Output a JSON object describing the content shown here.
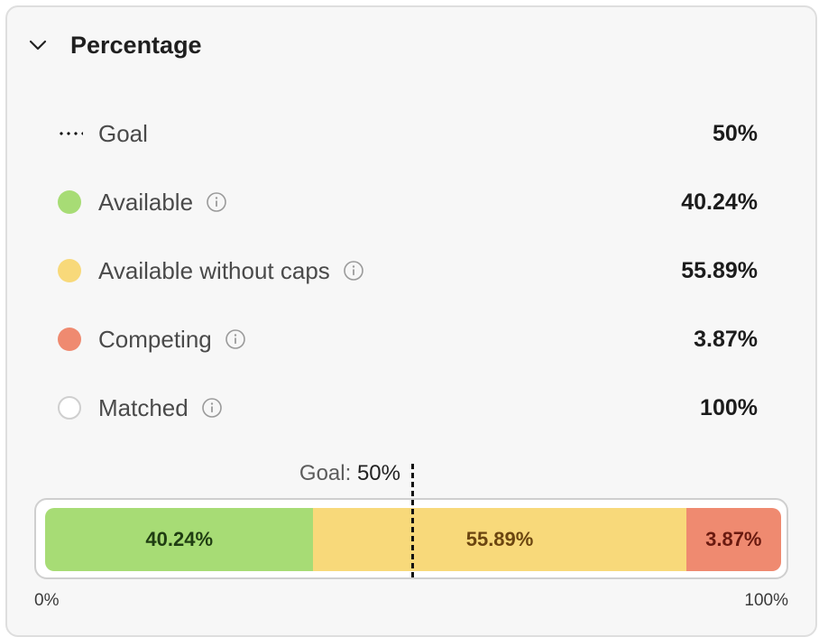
{
  "section": {
    "title": "Percentage",
    "collapse_icon": "chevron-down-icon"
  },
  "colors": {
    "available": "#a7dc75",
    "available_without_caps": "#f8d97a",
    "competing": "#ef8a70",
    "available_text": "#1f3d12",
    "available_without_caps_text": "#6b4510",
    "competing_text": "#6a1a10"
  },
  "legend": {
    "goal": {
      "label": "Goal",
      "value": "50%",
      "marker": "dotted-line"
    },
    "available": {
      "label": "Available",
      "value": "40.24%",
      "info_icon": "info-icon"
    },
    "available_without_caps": {
      "label": "Available without caps",
      "value": "55.89%",
      "info_icon": "info-icon"
    },
    "competing": {
      "label": "Competing",
      "value": "3.87%",
      "info_icon": "info-icon"
    },
    "matched": {
      "label": "Matched",
      "value": "100%",
      "info_icon": "info-icon"
    }
  },
  "bar": {
    "goal_prefix": "Goal:",
    "goal_value": "50%",
    "goal_fraction": 0.5,
    "segments": [
      {
        "key": "available",
        "label": "40.24%",
        "fraction": 0.3645
      },
      {
        "key": "available_without_caps",
        "label": "55.89%",
        "fraction": 0.5064
      },
      {
        "key": "competing",
        "label": "3.87%",
        "fraction": 0.1291
      }
    ],
    "axis_min_label": "0%",
    "axis_max_label": "100%"
  }
}
